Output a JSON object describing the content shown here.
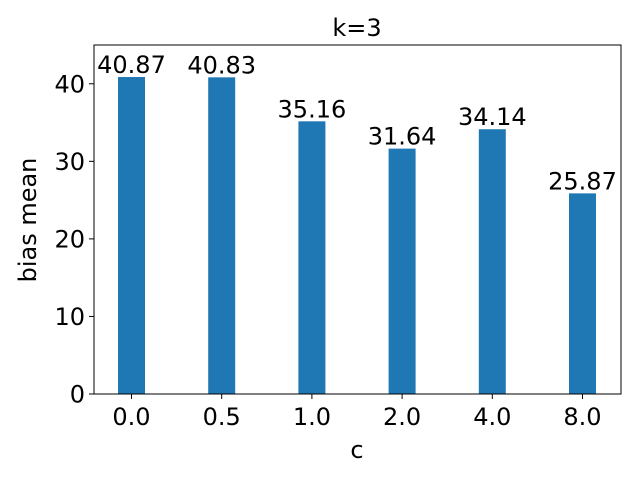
{
  "chart_data": {
    "type": "bar",
    "title": "k=3",
    "xlabel": "c",
    "ylabel": "bias mean",
    "categories": [
      "0.0",
      "0.5",
      "1.0",
      "2.0",
      "4.0",
      "8.0"
    ],
    "values": [
      40.87,
      40.83,
      35.16,
      31.64,
      34.14,
      25.87
    ],
    "data_labels": [
      "40.87",
      "40.83",
      "35.16",
      "31.64",
      "34.14",
      "25.87"
    ],
    "ylim": [
      0,
      45
    ],
    "yticks": [
      0,
      10,
      20,
      30,
      40
    ],
    "ytick_labels": [
      "0",
      "10",
      "20",
      "30",
      "40"
    ],
    "bar_color": "#1f77b4",
    "grid": false,
    "legend": "none"
  }
}
